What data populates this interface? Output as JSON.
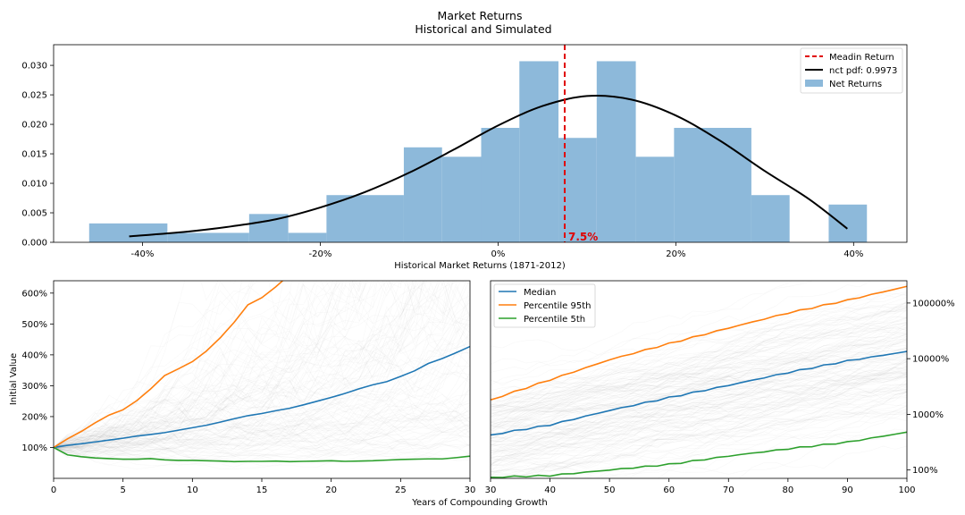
{
  "figure": {
    "title_line1": "Market Returns",
    "title_line2": "Historical and Simulated",
    "shared_xlabel": "Years of Compounding Growth"
  },
  "colors": {
    "hist_bar": "#8db9da",
    "median": "#1f77b4",
    "p95": "#ff7f0e",
    "p5": "#2ca02c",
    "mean_line": "#e00000",
    "pdf_line": "#000000",
    "sim_paths": "#9a9a9a"
  },
  "chart_data": [
    {
      "type": "bar",
      "subtype": "histogram",
      "xlabel": "Historical Market Returns (1871-2012)",
      "ylabel": "",
      "xlim": [
        -0.5,
        0.46
      ],
      "ylim": [
        0,
        0.0335
      ],
      "x_ticks": [
        -0.4,
        -0.2,
        0.0,
        0.2,
        0.4
      ],
      "x_tick_labels": [
        "-40%",
        "-20%",
        "0%",
        "20%",
        "40%"
      ],
      "y_ticks": [
        0.0,
        0.005,
        0.01,
        0.015,
        0.02,
        0.025,
        0.03
      ],
      "y_tick_labels": [
        "0.000",
        "0.005",
        "0.010",
        "0.015",
        "0.020",
        "0.025",
        "0.030"
      ],
      "bins": [
        {
          "x0": -0.46,
          "x1": -0.372,
          "value": 0.0032
        },
        {
          "x0": -0.372,
          "x1": -0.28,
          "value": 0.0016
        },
        {
          "x0": -0.28,
          "x1": -0.236,
          "value": 0.0048
        },
        {
          "x0": -0.236,
          "x1": -0.193,
          "value": 0.0016
        },
        {
          "x0": -0.193,
          "x1": -0.106,
          "value": 0.008
        },
        {
          "x0": -0.106,
          "x1": -0.063,
          "value": 0.0161
        },
        {
          "x0": -0.063,
          "x1": -0.019,
          "value": 0.0145
        },
        {
          "x0": -0.019,
          "x1": 0.024,
          "value": 0.0194
        },
        {
          "x0": 0.024,
          "x1": 0.068,
          "value": 0.0307
        },
        {
          "x0": 0.068,
          "x1": 0.111,
          "value": 0.0177
        },
        {
          "x0": 0.111,
          "x1": 0.155,
          "value": 0.0307
        },
        {
          "x0": 0.155,
          "x1": 0.198,
          "value": 0.0145
        },
        {
          "x0": 0.198,
          "x1": 0.285,
          "value": 0.0194
        },
        {
          "x0": 0.285,
          "x1": 0.328,
          "value": 0.008
        },
        {
          "x0": 0.372,
          "x1": 0.415,
          "value": 0.0064
        }
      ],
      "pdf_curve": {
        "x": [
          -0.415,
          -0.35,
          -0.3,
          -0.25,
          -0.2,
          -0.15,
          -0.1,
          -0.05,
          0.0,
          0.05,
          0.1,
          0.15,
          0.2,
          0.25,
          0.3,
          0.35,
          0.393
        ],
        "y": [
          0.001,
          0.0018,
          0.0027,
          0.0039,
          0.0059,
          0.0085,
          0.0118,
          0.0157,
          0.0198,
          0.0231,
          0.0248,
          0.0242,
          0.0215,
          0.0172,
          0.0121,
          0.0073,
          0.0023
        ]
      },
      "mean_line_x": 0.075,
      "mean_annotation": "7.5%",
      "legend": {
        "placement": "top-right",
        "entries": [
          {
            "label": "Meadin Return",
            "kind": "dashed-line",
            "color": "#e00000"
          },
          {
            "label": "nct pdf: 0.9973",
            "kind": "line",
            "color": "#000000"
          },
          {
            "label": "Net Returns",
            "kind": "patch",
            "color": "#8db9da"
          }
        ]
      }
    },
    {
      "type": "line",
      "xlabel": "",
      "ylabel": "Initial Value",
      "xlim": [
        0,
        30
      ],
      "ylim": [
        0,
        6.4
      ],
      "x_ticks": [
        0,
        5,
        10,
        15,
        20,
        25,
        30
      ],
      "x_tick_labels": [
        "0",
        "5",
        "10",
        "15",
        "20",
        "25",
        "30"
      ],
      "y_ticks": [
        1,
        2,
        3,
        4,
        5,
        6
      ],
      "y_tick_labels": [
        "100%",
        "200%",
        "300%",
        "400%",
        "500%",
        "600%"
      ],
      "series": [
        {
          "role": "median",
          "x": [
            0,
            1,
            2,
            3,
            4,
            5,
            6,
            7,
            8,
            9,
            10,
            11,
            12,
            13,
            14,
            15,
            16,
            17,
            18,
            19,
            20,
            21,
            22,
            23,
            24,
            25,
            26,
            27,
            28,
            29,
            30
          ],
          "values": [
            1.0,
            1.07,
            1.12,
            1.18,
            1.24,
            1.3,
            1.37,
            1.42,
            1.48,
            1.56,
            1.64,
            1.72,
            1.82,
            1.93,
            2.03,
            2.1,
            2.19,
            2.27,
            2.38,
            2.5,
            2.62,
            2.75,
            2.9,
            3.03,
            3.13,
            3.3,
            3.48,
            3.72,
            3.88,
            4.07,
            4.27
          ]
        },
        {
          "role": "p95",
          "x": [
            0,
            1,
            2,
            3,
            4,
            5,
            6,
            7,
            8,
            9,
            10,
            11,
            12,
            13,
            14,
            15,
            16,
            16.5
          ],
          "values": [
            1.0,
            1.28,
            1.52,
            1.8,
            2.05,
            2.22,
            2.52,
            2.9,
            3.33,
            3.55,
            3.78,
            4.12,
            4.55,
            5.05,
            5.62,
            5.85,
            6.2,
            6.4
          ]
        },
        {
          "role": "p5",
          "x": [
            0,
            1,
            2,
            3,
            4,
            5,
            6,
            7,
            8,
            9,
            10,
            11,
            12,
            13,
            14,
            15,
            16,
            17,
            18,
            19,
            20,
            21,
            22,
            23,
            24,
            25,
            26,
            27,
            28,
            29,
            30
          ],
          "values": [
            1.0,
            0.76,
            0.7,
            0.66,
            0.64,
            0.62,
            0.62,
            0.64,
            0.6,
            0.58,
            0.58,
            0.57,
            0.56,
            0.54,
            0.55,
            0.55,
            0.56,
            0.54,
            0.55,
            0.56,
            0.57,
            0.55,
            0.56,
            0.57,
            0.59,
            0.61,
            0.62,
            0.63,
            0.63,
            0.67,
            0.72
          ]
        }
      ]
    },
    {
      "type": "line",
      "xlabel": "",
      "ylabel": "",
      "xlim": [
        30,
        100
      ],
      "ylim_log10": [
        -0.15,
        3.4
      ],
      "y_scale": "log",
      "y_axis_side": "right",
      "x_ticks": [
        30,
        40,
        50,
        60,
        70,
        80,
        90,
        100
      ],
      "x_tick_labels": [
        "30",
        "40",
        "50",
        "60",
        "70",
        "80",
        "90",
        "100"
      ],
      "y_ticks_log10": [
        0,
        1,
        2,
        3
      ],
      "y_tick_labels": [
        "100%",
        "1000%",
        "10000%",
        "100000%"
      ],
      "legend": {
        "placement": "top-left",
        "entries": [
          {
            "label": "Median",
            "color": "#1f77b4"
          },
          {
            "label": "Percentile 95th",
            "color": "#ff7f0e"
          },
          {
            "label": "Percentile 5th",
            "color": "#2ca02c"
          }
        ]
      },
      "series": [
        {
          "name": "Median",
          "x": [
            30,
            40,
            50,
            60,
            70,
            80,
            90,
            100
          ],
          "values_log10": [
            0.63,
            0.81,
            1.07,
            1.3,
            1.52,
            1.75,
            1.96,
            2.13
          ]
        },
        {
          "name": "Percentile 95th",
          "x": [
            30,
            40,
            50,
            60,
            70,
            80,
            90,
            100
          ],
          "values_log10": [
            1.26,
            1.62,
            1.98,
            2.27,
            2.55,
            2.82,
            3.05,
            3.3
          ]
        },
        {
          "name": "Percentile 5th",
          "x": [
            30,
            40,
            50,
            60,
            70,
            80,
            90,
            100
          ],
          "values_log10": [
            -0.13,
            -0.1,
            0.0,
            0.1,
            0.25,
            0.38,
            0.5,
            0.68
          ]
        }
      ]
    }
  ]
}
